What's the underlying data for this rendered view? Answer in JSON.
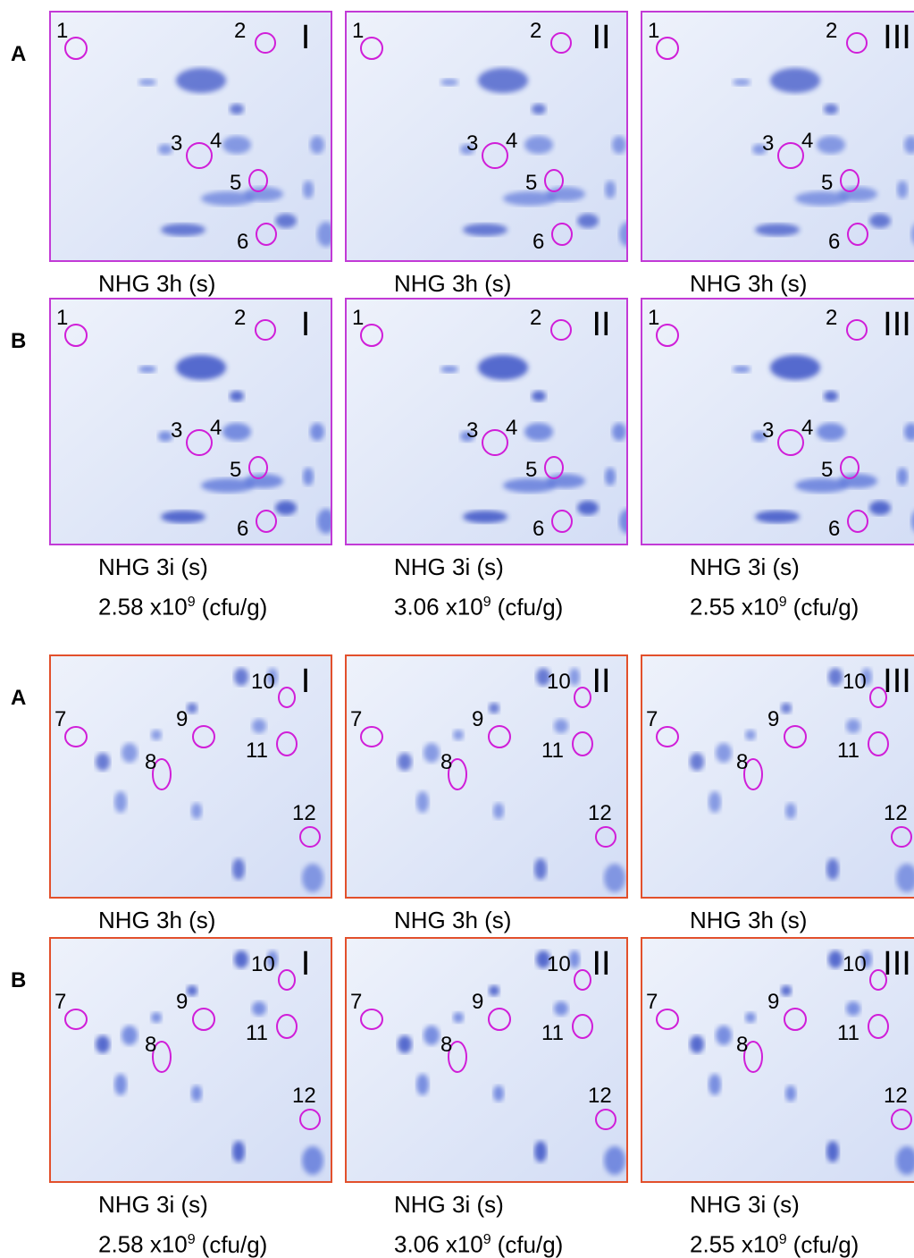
{
  "sections": [
    {
      "rows": [
        {
          "letter": "A",
          "panels": [
            {
              "numeral": "I",
              "spots": [
                "1",
                "2",
                "3",
                "4",
                "5",
                "6"
              ],
              "caption": {
                "label": "NHG 3h (s)"
              }
            },
            {
              "numeral": "II",
              "spots": [
                "1",
                "2",
                "3",
                "4",
                "5",
                "6"
              ],
              "caption": {
                "label": "NHG 3h (s)"
              }
            },
            {
              "numeral": "III",
              "spots": [
                "1",
                "2",
                "3",
                "4",
                "5",
                "6"
              ],
              "caption": {
                "label": "NHG 3h (s)"
              }
            }
          ]
        },
        {
          "letter": "B",
          "panels": [
            {
              "numeral": "I",
              "spots": [
                "1",
                "2",
                "3",
                "4",
                "5",
                "6"
              ],
              "caption": {
                "label": "NHG 3i (s)",
                "count": "2.58 x10",
                "exponent": "9",
                "unit": "(cfu/g)"
              }
            },
            {
              "numeral": "II",
              "spots": [
                "1",
                "2",
                "3",
                "4",
                "5",
                "6"
              ],
              "caption": {
                "label": "NHG 3i (s)",
                "count": "3.06 x10",
                "exponent": "9",
                "unit": "(cfu/g)"
              }
            },
            {
              "numeral": "III",
              "spots": [
                "1",
                "2",
                "3",
                "4",
                "5",
                "6"
              ],
              "caption": {
                "label": "NHG 3i (s)",
                "count": "2.55 x10",
                "exponent": "9",
                "unit": "(cfu/g)"
              }
            }
          ]
        }
      ]
    },
    {
      "rows": [
        {
          "letter": "A",
          "panels": [
            {
              "numeral": "I",
              "spots": [
                "7",
                "8",
                "9",
                "10",
                "11",
                "12"
              ],
              "caption": {
                "label": "NHG 3h (s)"
              }
            },
            {
              "numeral": "II",
              "spots": [
                "7",
                "8",
                "9",
                "10",
                "11",
                "12"
              ],
              "caption": {
                "label": "NHG 3h (s)"
              }
            },
            {
              "numeral": "III",
              "spots": [
                "7",
                "8",
                "9",
                "10",
                "11",
                "12"
              ],
              "caption": {
                "label": "NHG 3h (s)"
              }
            }
          ]
        },
        {
          "letter": "B",
          "panels": [
            {
              "numeral": "I",
              "spots": [
                "7",
                "8",
                "9",
                "10",
                "11",
                "12"
              ],
              "caption": {
                "label": "NHG 3i (s)",
                "count": "2.58 x10",
                "exponent": "9",
                "unit": "(cfu/g)"
              }
            },
            {
              "numeral": "II",
              "spots": [
                "7",
                "8",
                "9",
                "10",
                "11",
                "12"
              ],
              "caption": {
                "label": "NHG 3i (s)",
                "count": "3.06 x10",
                "exponent": "9",
                "unit": "(cfu/g)"
              }
            },
            {
              "numeral": "III",
              "spots": [
                "7",
                "8",
                "9",
                "10",
                "11",
                "12"
              ],
              "caption": {
                "label": "NHG 3i (s)",
                "count": "2.55 x10",
                "exponent": "9",
                "unit": "(cfu/g)"
              }
            }
          ]
        }
      ]
    }
  ]
}
